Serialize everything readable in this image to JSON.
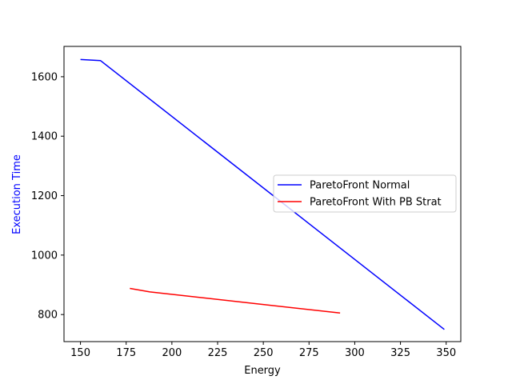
{
  "chart_data": {
    "type": "line",
    "title": "",
    "xlabel": "Energy",
    "ylabel": "Execution Time",
    "xlabel_color": "#000000",
    "ylabel_color": "#0000ff",
    "xlim": [
      141,
      358
    ],
    "ylim": [
      709,
      1702
    ],
    "xticks": [
      150,
      175,
      200,
      225,
      250,
      275,
      300,
      325,
      350
    ],
    "yticks": [
      800,
      1000,
      1200,
      1400,
      1600
    ],
    "grid": false,
    "legend_position": "center-right",
    "series": [
      {
        "name": "ParetoFront Normal",
        "color": "#0000ff",
        "x": [
          150,
          161,
          349
        ],
        "y": [
          1658,
          1654,
          750
        ]
      },
      {
        "name": "ParetoFront With PB Strat",
        "color": "#ff0000",
        "x": [
          177,
          188,
          292
        ],
        "y": [
          888,
          876,
          805
        ]
      }
    ]
  }
}
